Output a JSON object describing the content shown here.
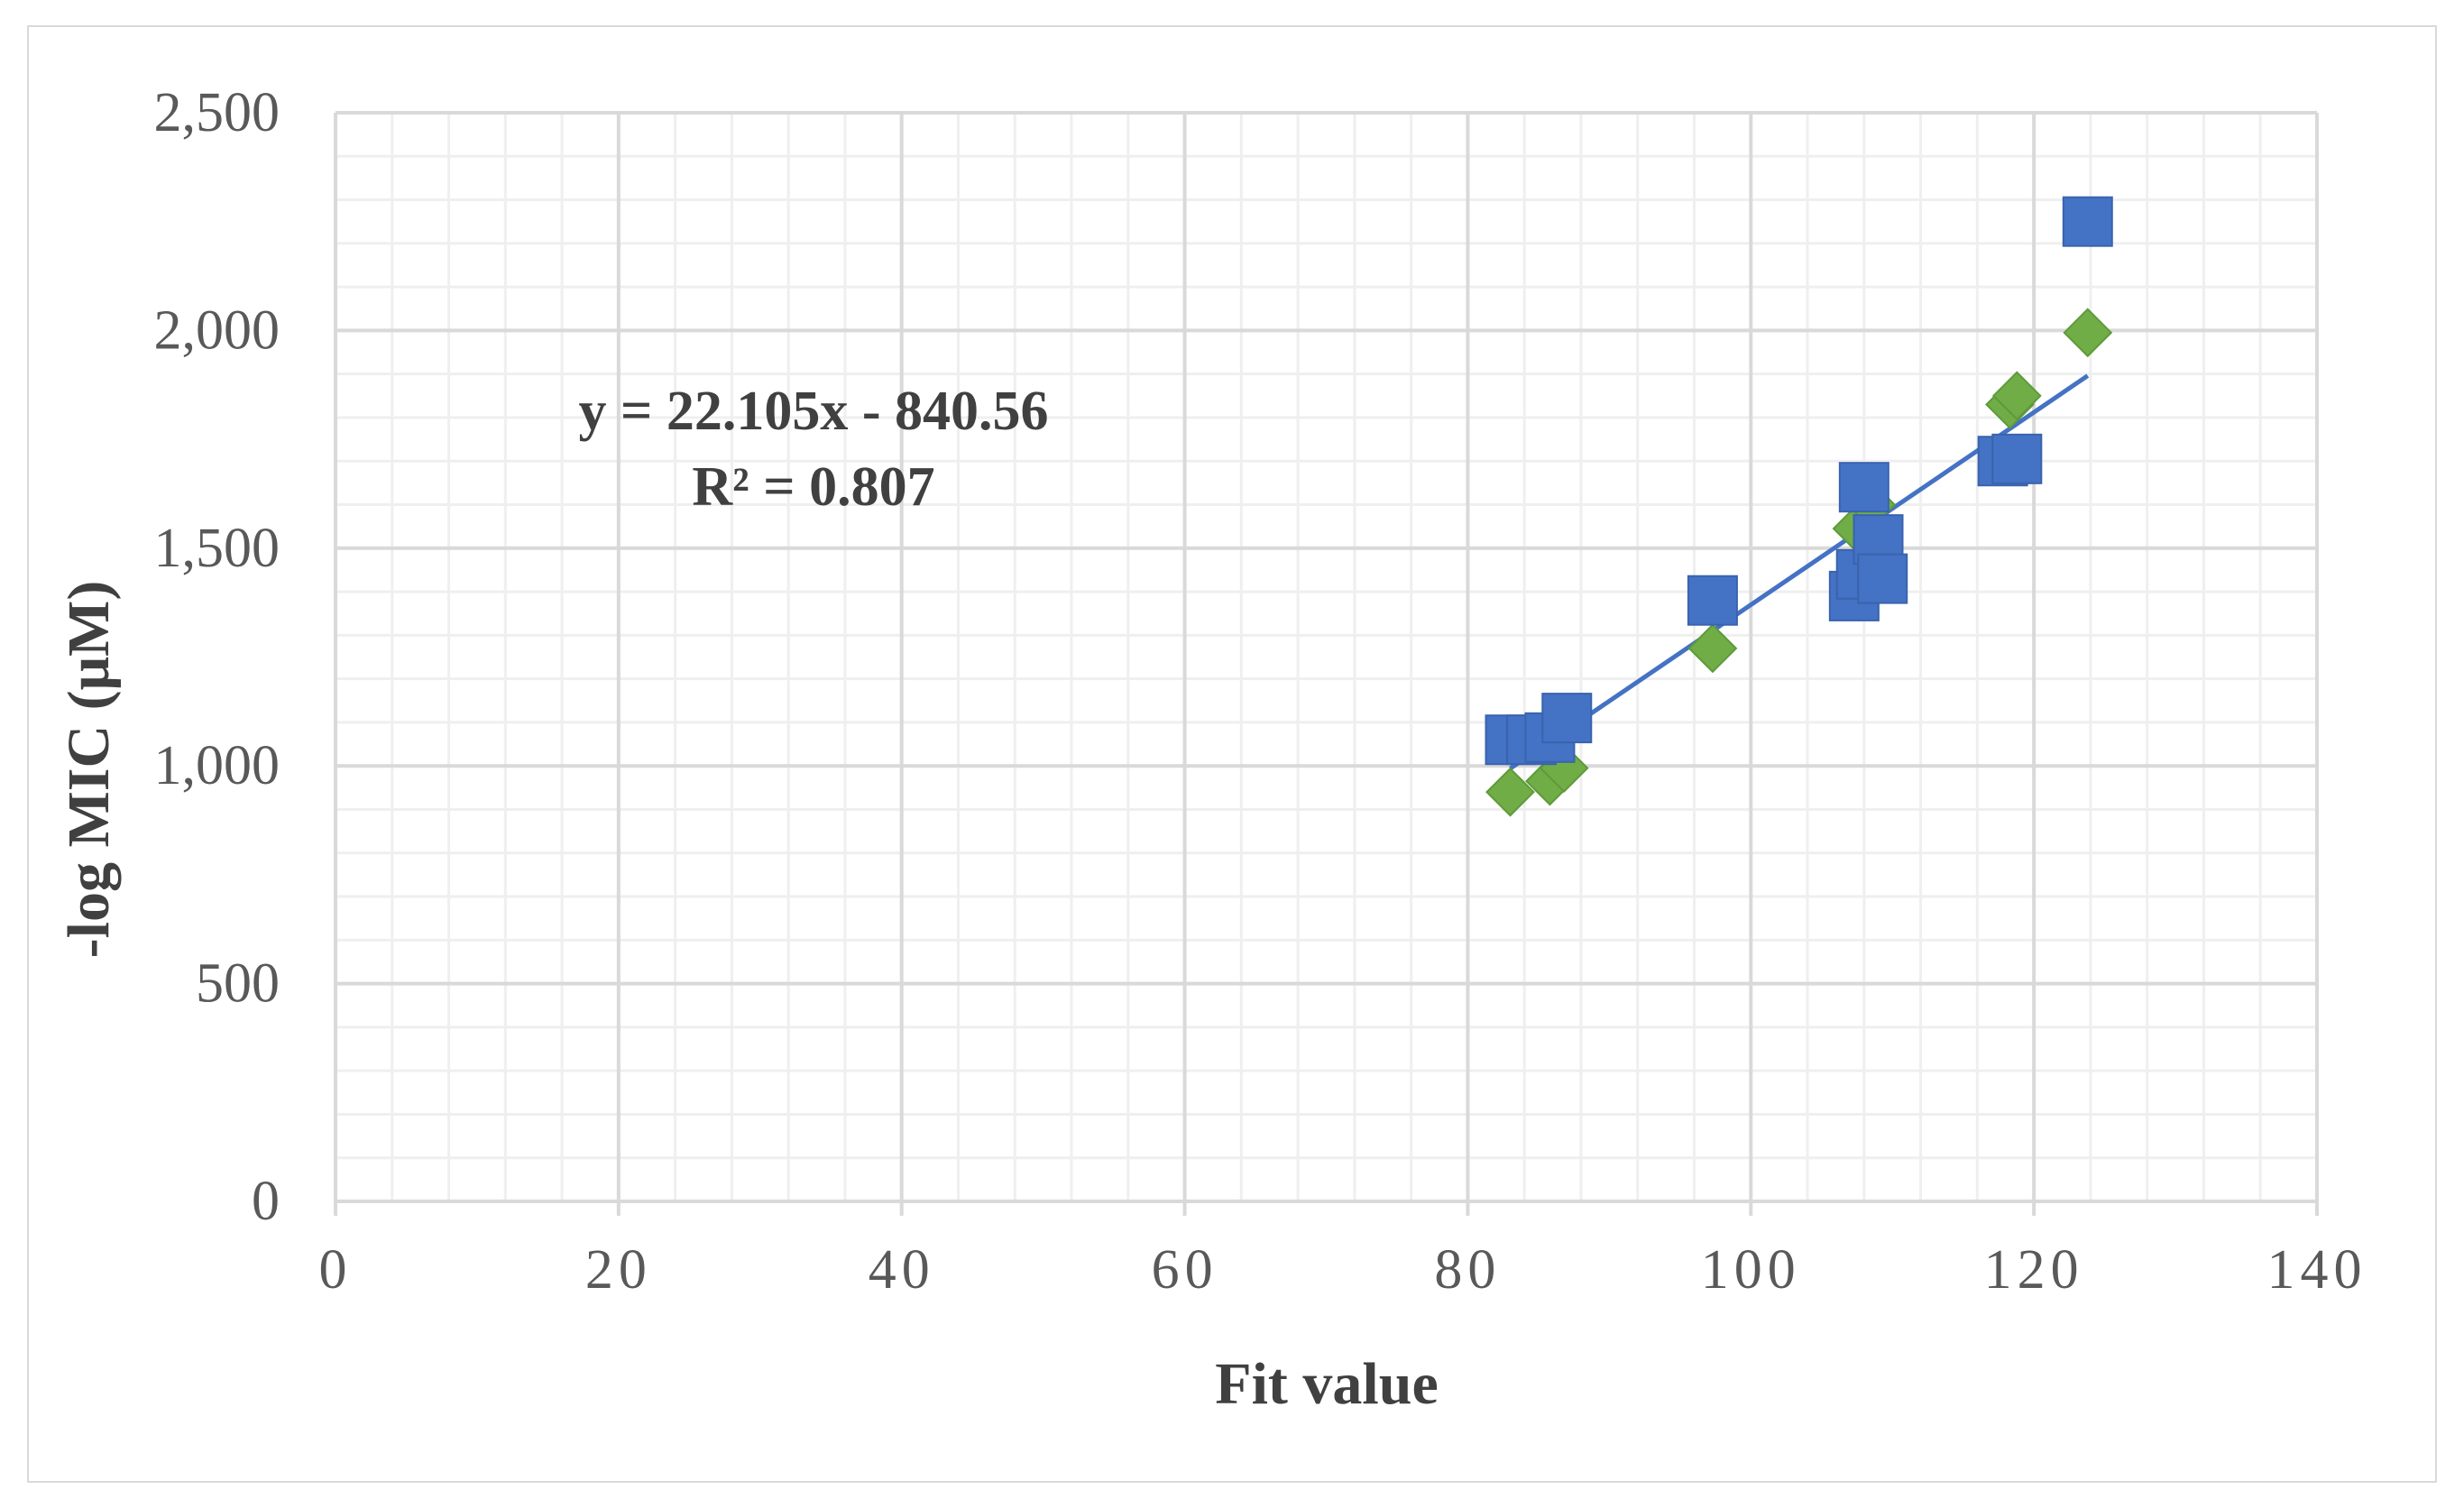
{
  "chart_data": {
    "type": "scatter",
    "title": "",
    "xlabel": "Fit value",
    "ylabel": "-log MIC (μM)",
    "xlim": [
      0,
      140
    ],
    "ylim": [
      0,
      2500
    ],
    "x_ticks": [
      "0",
      "20",
      "40",
      "60",
      "80",
      "100",
      "120",
      "140"
    ],
    "y_ticks": [
      "0",
      "500",
      "1,000",
      "1,500",
      "2,000",
      "2,500"
    ],
    "x_tick_values": [
      0,
      20,
      40,
      60,
      80,
      100,
      120,
      140
    ],
    "y_tick_values": [
      0,
      500,
      1000,
      1500,
      2000,
      2500
    ],
    "x_minor_step": 4,
    "y_minor_step": 100,
    "grid": true,
    "legend": "none",
    "series": [
      {
        "marker": "square",
        "color": "#4472c4",
        "points": [
          {
            "x": 83.0,
            "y": 1060
          },
          {
            "x": 84.5,
            "y": 1060
          },
          {
            "x": 85.8,
            "y": 1065
          },
          {
            "x": 87.0,
            "y": 1110
          },
          {
            "x": 97.3,
            "y": 1380
          },
          {
            "x": 107.3,
            "y": 1390
          },
          {
            "x": 108.0,
            "y": 1640
          },
          {
            "x": 107.8,
            "y": 1440
          },
          {
            "x": 109.0,
            "y": 1520
          },
          {
            "x": 109.3,
            "y": 1430
          },
          {
            "x": 117.8,
            "y": 1700
          },
          {
            "x": 118.8,
            "y": 1705
          },
          {
            "x": 123.8,
            "y": 2250
          }
        ]
      },
      {
        "marker": "diamond",
        "color": "#70ad47",
        "points": [
          {
            "x": 83.0,
            "y": 940
          },
          {
            "x": 85.8,
            "y": 965
          },
          {
            "x": 86.8,
            "y": 995
          },
          {
            "x": 97.3,
            "y": 1270
          },
          {
            "x": 107.5,
            "y": 1545
          },
          {
            "x": 108.5,
            "y": 1600
          },
          {
            "x": 118.3,
            "y": 1830
          },
          {
            "x": 118.8,
            "y": 1850
          },
          {
            "x": 123.8,
            "y": 1995
          }
        ]
      }
    ],
    "trendline": {
      "type": "linear",
      "color": "#4472c4",
      "slope": 22.105,
      "intercept": -840.56,
      "x_range": [
        83.0,
        123.8
      ],
      "equation_label": "y = 22.105x - 840.56",
      "r2_label": "R² = 0.807"
    }
  }
}
